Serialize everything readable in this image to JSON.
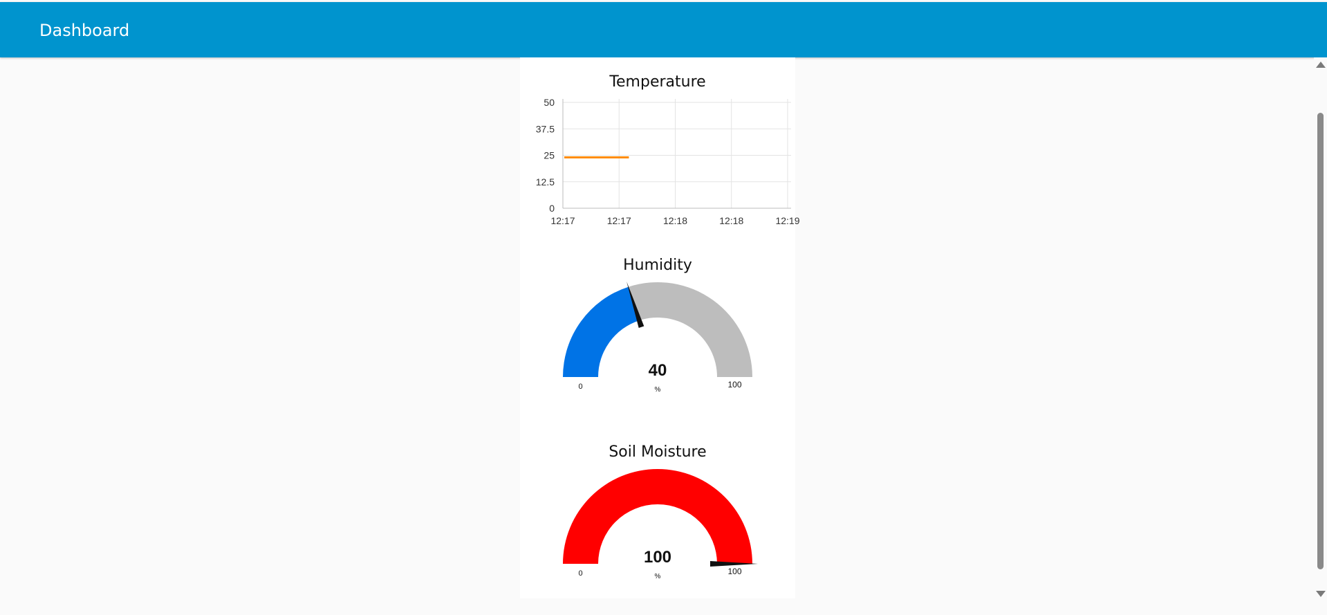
{
  "header": {
    "title": "Dashboard"
  },
  "temperature": {
    "title": "Temperature",
    "chart_data": {
      "type": "line",
      "title": "Temperature",
      "y_ticks": [
        "0",
        "12.5",
        "25",
        "37.5",
        "50"
      ],
      "ylim": [
        0,
        50
      ],
      "x_ticks": [
        "12:17",
        "12:17",
        "12:18",
        "12:18",
        "12:19"
      ],
      "series": [
        {
          "color": "#ff8c00",
          "x_tick_positions": [
            0.0,
            1.15
          ],
          "values": [
            24,
            24
          ]
        }
      ],
      "grid": true
    }
  },
  "humidity": {
    "title": "Humidity",
    "value": "40",
    "units": "%",
    "min": "0",
    "max": "100",
    "level": 0.4,
    "fill_color": "#0073e6",
    "track_color": "#bdbdbd"
  },
  "soil": {
    "title": "Soil Moisture",
    "value": "100",
    "units": "%",
    "min": "0",
    "max": "100",
    "level": 1.0,
    "fill_color": "#ff0000",
    "track_color": "#bdbdbd"
  }
}
